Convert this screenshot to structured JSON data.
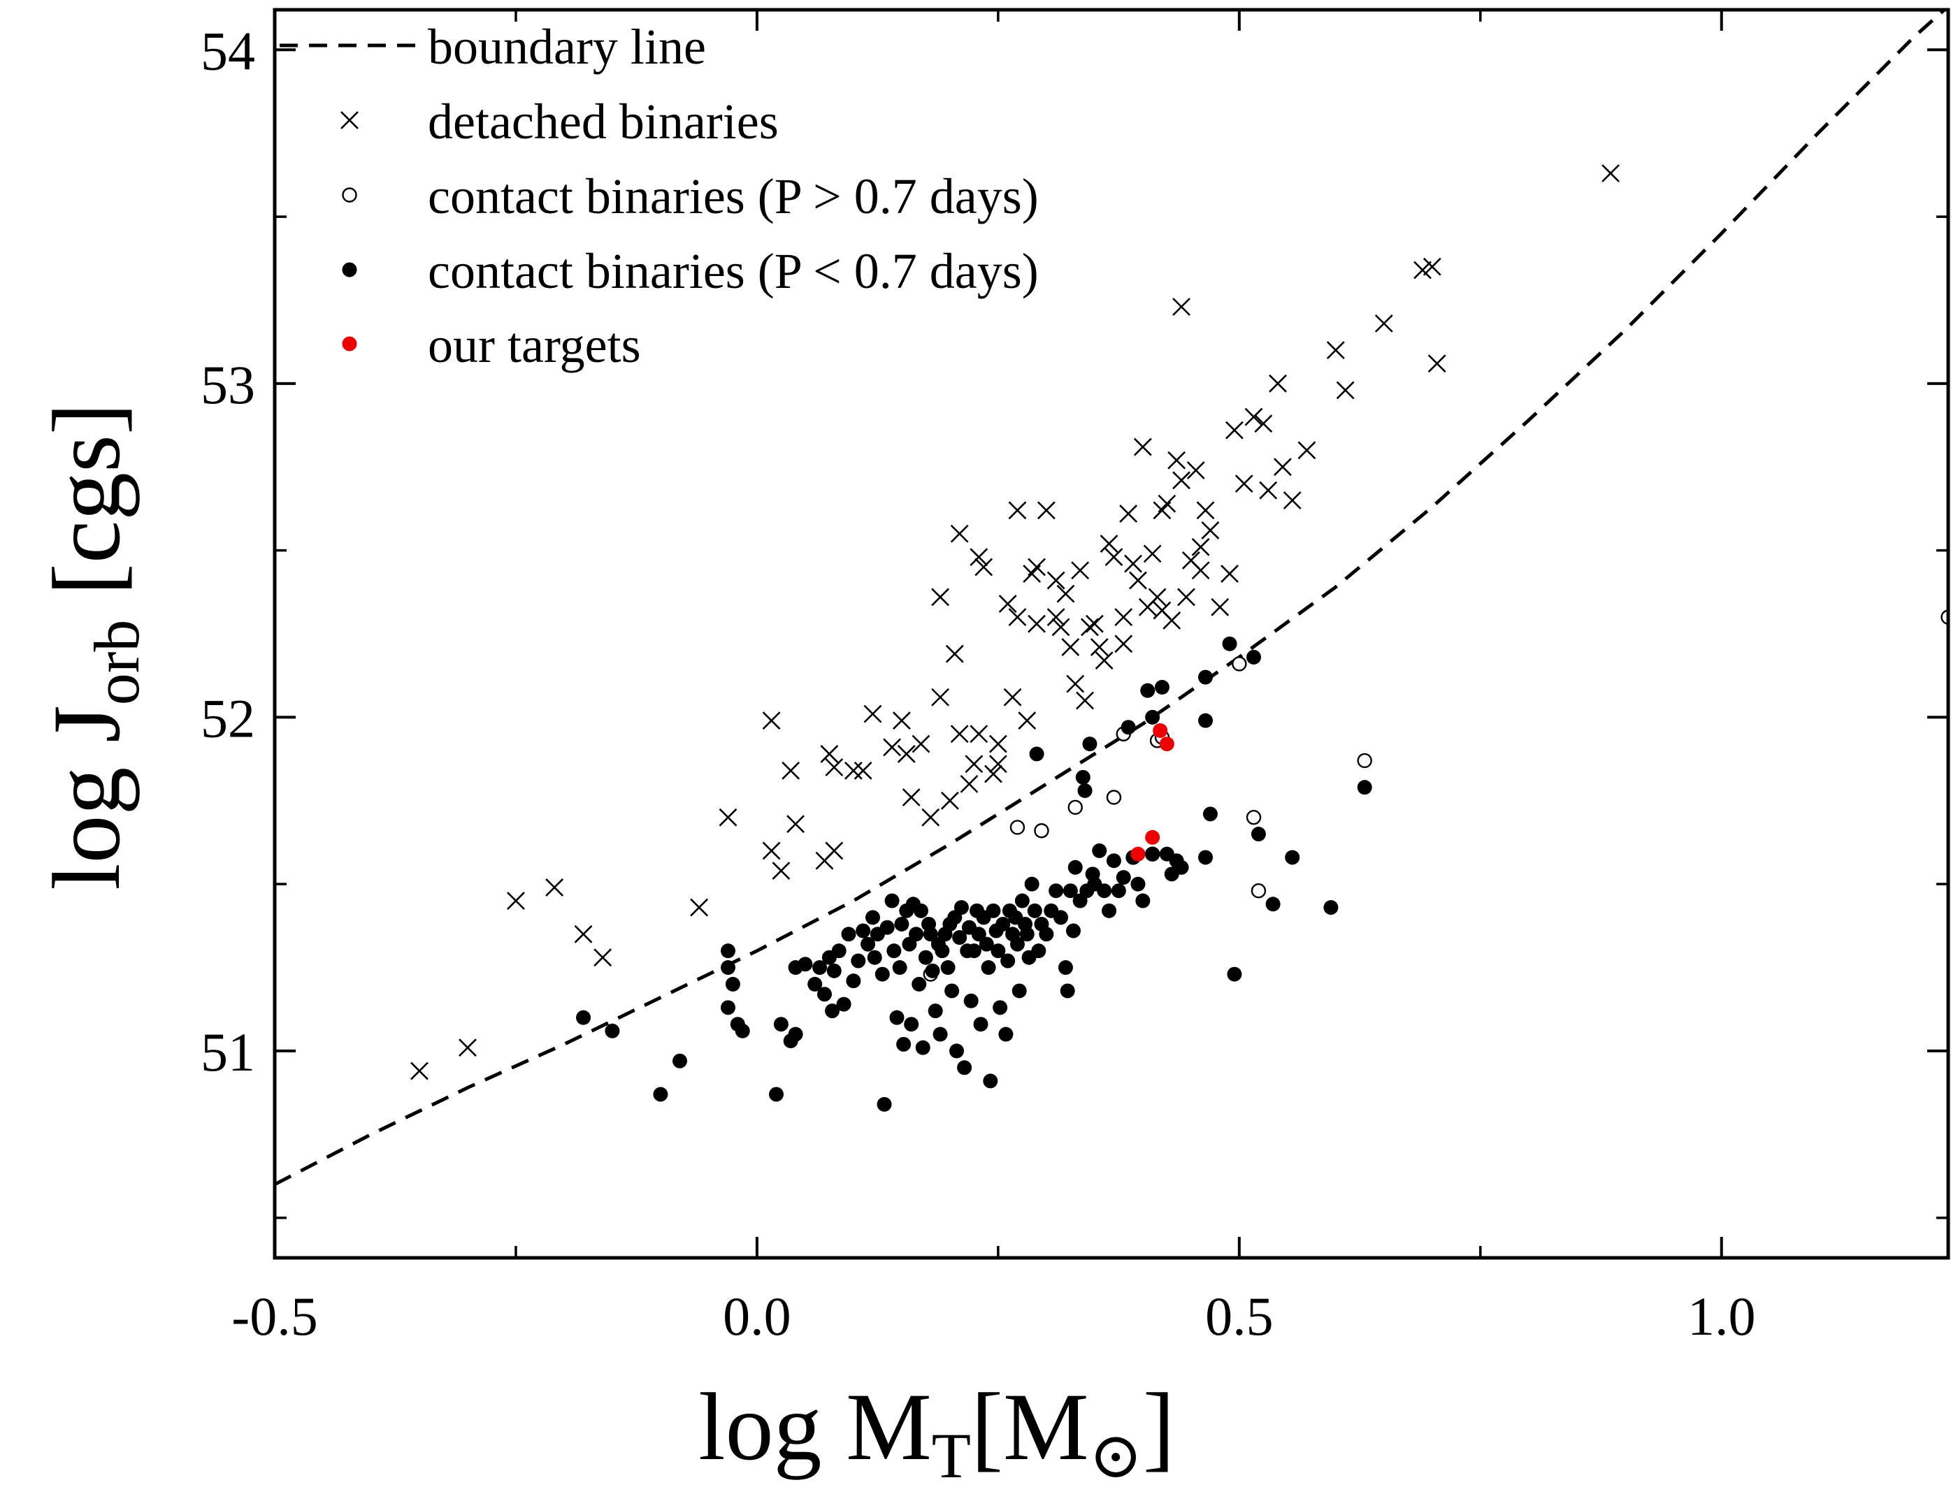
{
  "chart_data": {
    "type": "scatter",
    "xlabel": {
      "main": "log M",
      "sub": "T",
      "bracket_open": "[M",
      "sun_symbol": "⊙",
      "bracket_close": "]"
    },
    "ylabel": {
      "main": "log J",
      "sub": "orb",
      "unit": " [cgs]"
    },
    "xlim": [
      -0.5,
      1.235
    ],
    "ylim": [
      50.38,
      54.12
    ],
    "xticks": [
      -0.5,
      0.0,
      0.5,
      1.0
    ],
    "xtick_labels": [
      "-0.5",
      "0.0",
      "0.5",
      "1.0"
    ],
    "yticks": [
      51,
      52,
      53,
      54
    ],
    "ytick_labels": [
      "51",
      "52",
      "53",
      "54"
    ],
    "grid": false,
    "legend_position": "top-left",
    "legend": [
      {
        "key": "boundary",
        "label": "boundary line"
      },
      {
        "key": "detached",
        "label": "detached binaries"
      },
      {
        "key": "contact_long",
        "label": "contact binaries (P > 0.7 days)"
      },
      {
        "key": "contact_short",
        "label": "contact binaries (P < 0.7 days)"
      },
      {
        "key": "targets",
        "label": "our targets"
      }
    ],
    "boundary_line": {
      "style": "dashed",
      "x": [
        -0.5,
        -0.4,
        -0.3,
        -0.2,
        -0.1,
        0.0,
        0.1,
        0.2,
        0.3,
        0.4,
        0.5,
        0.6,
        0.7,
        0.8,
        0.9,
        1.0,
        1.1,
        1.2,
        1.235
      ],
      "y": [
        50.6,
        50.75,
        50.89,
        51.02,
        51.16,
        51.3,
        51.45,
        51.62,
        51.8,
        51.98,
        52.18,
        52.39,
        52.63,
        52.89,
        53.16,
        53.45,
        53.75,
        54.04,
        54.13
      ]
    },
    "series": [
      {
        "name": "detached binaries",
        "marker": "x",
        "color": "#000000",
        "points": [
          [
            -0.35,
            50.94
          ],
          [
            -0.3,
            51.01
          ],
          [
            -0.25,
            51.45
          ],
          [
            -0.21,
            51.49
          ],
          [
            -0.18,
            51.35
          ],
          [
            -0.16,
            51.28
          ],
          [
            -0.06,
            51.43
          ],
          [
            -0.03,
            51.7
          ],
          [
            0.015,
            51.99
          ],
          [
            0.015,
            51.6
          ],
          [
            0.025,
            51.54
          ],
          [
            0.035,
            51.84
          ],
          [
            0.04,
            51.68
          ],
          [
            0.07,
            51.57
          ],
          [
            0.075,
            51.89
          ],
          [
            0.08,
            51.85
          ],
          [
            0.08,
            51.6
          ],
          [
            0.1,
            51.84
          ],
          [
            0.11,
            51.84
          ],
          [
            0.12,
            52.01
          ],
          [
            0.14,
            51.91
          ],
          [
            0.15,
            51.99
          ],
          [
            0.155,
            51.89
          ],
          [
            0.16,
            51.76
          ],
          [
            0.17,
            51.92
          ],
          [
            0.18,
            51.7
          ],
          [
            0.19,
            52.06
          ],
          [
            0.19,
            52.36
          ],
          [
            0.2,
            51.75
          ],
          [
            0.205,
            52.19
          ],
          [
            0.21,
            52.55
          ],
          [
            0.21,
            51.95
          ],
          [
            0.22,
            51.8
          ],
          [
            0.225,
            51.86
          ],
          [
            0.23,
            52.48
          ],
          [
            0.23,
            51.95
          ],
          [
            0.235,
            52.45
          ],
          [
            0.245,
            51.83
          ],
          [
            0.25,
            51.86
          ],
          [
            0.25,
            51.92
          ],
          [
            0.26,
            52.34
          ],
          [
            0.265,
            52.06
          ],
          [
            0.27,
            52.62
          ],
          [
            0.27,
            52.3
          ],
          [
            0.28,
            51.99
          ],
          [
            0.285,
            52.43
          ],
          [
            0.29,
            52.28
          ],
          [
            0.29,
            52.45
          ],
          [
            0.3,
            52.62
          ],
          [
            0.31,
            52.41
          ],
          [
            0.31,
            52.3
          ],
          [
            0.315,
            52.27
          ],
          [
            0.32,
            52.37
          ],
          [
            0.325,
            52.21
          ],
          [
            0.33,
            52.1
          ],
          [
            0.335,
            52.44
          ],
          [
            0.34,
            52.05
          ],
          [
            0.345,
            52.27
          ],
          [
            0.35,
            52.28
          ],
          [
            0.355,
            52.21
          ],
          [
            0.36,
            52.17
          ],
          [
            0.365,
            52.52
          ],
          [
            0.37,
            52.48
          ],
          [
            0.38,
            52.22
          ],
          [
            0.38,
            52.3
          ],
          [
            0.385,
            52.61
          ],
          [
            0.39,
            52.46
          ],
          [
            0.395,
            52.41
          ],
          [
            0.4,
            52.81
          ],
          [
            0.405,
            52.33
          ],
          [
            0.41,
            52.49
          ],
          [
            0.415,
            52.36
          ],
          [
            0.42,
            52.32
          ],
          [
            0.42,
            52.62
          ],
          [
            0.425,
            52.64
          ],
          [
            0.43,
            52.29
          ],
          [
            0.435,
            52.77
          ],
          [
            0.44,
            52.71
          ],
          [
            0.445,
            52.36
          ],
          [
            0.45,
            52.47
          ],
          [
            0.455,
            52.74
          ],
          [
            0.46,
            52.44
          ],
          [
            0.46,
            52.51
          ],
          [
            0.465,
            52.62
          ],
          [
            0.47,
            52.56
          ],
          [
            0.48,
            52.33
          ],
          [
            0.49,
            52.43
          ],
          [
            0.495,
            52.86
          ],
          [
            0.505,
            52.7
          ],
          [
            0.515,
            52.9
          ],
          [
            0.525,
            52.88
          ],
          [
            0.53,
            52.68
          ],
          [
            0.54,
            53.0
          ],
          [
            0.545,
            52.75
          ],
          [
            0.555,
            52.65
          ],
          [
            0.57,
            52.8
          ],
          [
            0.6,
            53.1
          ],
          [
            0.61,
            52.98
          ],
          [
            0.65,
            53.18
          ],
          [
            0.69,
            53.34
          ],
          [
            0.7,
            53.35
          ],
          [
            0.705,
            53.06
          ],
          [
            0.885,
            53.63
          ],
          [
            0.44,
            53.23
          ]
        ]
      },
      {
        "name": "contact binaries (P > 0.7 days)",
        "marker": "open-circle",
        "color": "#000000",
        "points": [
          [
            0.18,
            51.23
          ],
          [
            0.27,
            51.67
          ],
          [
            0.295,
            51.66
          ],
          [
            0.33,
            51.73
          ],
          [
            0.37,
            51.76
          ],
          [
            0.38,
            51.95
          ],
          [
            0.39,
            51.58
          ],
          [
            0.415,
            51.93
          ],
          [
            0.5,
            52.16
          ],
          [
            0.515,
            51.7
          ],
          [
            0.52,
            51.48
          ],
          [
            0.63,
            51.87
          ],
          [
            1.235,
            52.3
          ],
          [
            0.42,
            51.94
          ],
          [
            0.41,
            51.59
          ]
        ]
      },
      {
        "name": "contact binaries (P < 0.7 days)",
        "marker": "filled-circle",
        "color": "#000000",
        "points": [
          [
            -0.1,
            50.87
          ],
          [
            -0.08,
            50.97
          ],
          [
            -0.18,
            51.1
          ],
          [
            -0.15,
            51.06
          ],
          [
            -0.03,
            51.25
          ],
          [
            -0.03,
            51.3
          ],
          [
            -0.03,
            51.13
          ],
          [
            -0.025,
            51.2
          ],
          [
            -0.02,
            51.08
          ],
          [
            -0.015,
            51.06
          ],
          [
            0.02,
            50.87
          ],
          [
            0.025,
            51.08
          ],
          [
            0.035,
            51.03
          ],
          [
            0.04,
            51.25
          ],
          [
            0.04,
            51.05
          ],
          [
            0.05,
            51.26
          ],
          [
            0.06,
            51.2
          ],
          [
            0.065,
            51.25
          ],
          [
            0.07,
            51.17
          ],
          [
            0.075,
            51.28
          ],
          [
            0.078,
            51.12
          ],
          [
            0.08,
            51.24
          ],
          [
            0.085,
            51.3
          ],
          [
            0.09,
            51.14
          ],
          [
            0.095,
            51.35
          ],
          [
            0.1,
            51.21
          ],
          [
            0.105,
            51.27
          ],
          [
            0.11,
            51.36
          ],
          [
            0.115,
            51.32
          ],
          [
            0.12,
            51.4
          ],
          [
            0.122,
            51.28
          ],
          [
            0.125,
            51.35
          ],
          [
            0.13,
            51.23
          ],
          [
            0.132,
            50.84
          ],
          [
            0.135,
            51.37
          ],
          [
            0.14,
            51.45
          ],
          [
            0.142,
            51.3
          ],
          [
            0.145,
            51.1
          ],
          [
            0.148,
            51.25
          ],
          [
            0.15,
            51.38
          ],
          [
            0.152,
            51.02
          ],
          [
            0.155,
            51.42
          ],
          [
            0.158,
            51.32
          ],
          [
            0.16,
            51.08
          ],
          [
            0.162,
            51.44
          ],
          [
            0.165,
            51.35
          ],
          [
            0.168,
            51.2
          ],
          [
            0.17,
            51.42
          ],
          [
            0.172,
            51.01
          ],
          [
            0.175,
            51.28
          ],
          [
            0.178,
            51.38
          ],
          [
            0.18,
            51.35
          ],
          [
            0.182,
            51.24
          ],
          [
            0.185,
            51.12
          ],
          [
            0.188,
            51.32
          ],
          [
            0.19,
            51.05
          ],
          [
            0.192,
            51.3
          ],
          [
            0.195,
            51.35
          ],
          [
            0.198,
            51.25
          ],
          [
            0.2,
            51.38
          ],
          [
            0.202,
            51.18
          ],
          [
            0.205,
            51.4
          ],
          [
            0.207,
            51.0
          ],
          [
            0.21,
            51.34
          ],
          [
            0.212,
            51.43
          ],
          [
            0.215,
            50.95
          ],
          [
            0.218,
            51.3
          ],
          [
            0.22,
            51.37
          ],
          [
            0.222,
            51.15
          ],
          [
            0.225,
            51.3
          ],
          [
            0.228,
            51.42
          ],
          [
            0.23,
            51.35
          ],
          [
            0.232,
            51.08
          ],
          [
            0.235,
            51.4
          ],
          [
            0.238,
            51.32
          ],
          [
            0.24,
            51.25
          ],
          [
            0.242,
            50.91
          ],
          [
            0.245,
            51.42
          ],
          [
            0.248,
            51.36
          ],
          [
            0.25,
            51.3
          ],
          [
            0.252,
            51.13
          ],
          [
            0.255,
            51.38
          ],
          [
            0.258,
            51.05
          ],
          [
            0.26,
            51.27
          ],
          [
            0.262,
            51.42
          ],
          [
            0.265,
            51.35
          ],
          [
            0.268,
            51.4
          ],
          [
            0.27,
            51.32
          ],
          [
            0.272,
            51.18
          ],
          [
            0.275,
            51.45
          ],
          [
            0.278,
            51.38
          ],
          [
            0.28,
            51.35
          ],
          [
            0.282,
            51.28
          ],
          [
            0.285,
            51.5
          ],
          [
            0.288,
            51.42
          ],
          [
            0.29,
            51.89
          ],
          [
            0.292,
            51.3
          ],
          [
            0.295,
            51.38
          ],
          [
            0.3,
            51.35
          ],
          [
            0.305,
            51.42
          ],
          [
            0.31,
            51.48
          ],
          [
            0.315,
            51.4
          ],
          [
            0.32,
            51.25
          ],
          [
            0.322,
            51.18
          ],
          [
            0.325,
            51.48
          ],
          [
            0.328,
            51.36
          ],
          [
            0.33,
            51.55
          ],
          [
            0.335,
            51.45
          ],
          [
            0.338,
            51.82
          ],
          [
            0.34,
            51.78
          ],
          [
            0.342,
            51.48
          ],
          [
            0.345,
            51.92
          ],
          [
            0.348,
            51.53
          ],
          [
            0.35,
            51.5
          ],
          [
            0.355,
            51.6
          ],
          [
            0.36,
            51.48
          ],
          [
            0.365,
            51.42
          ],
          [
            0.37,
            51.57
          ],
          [
            0.375,
            51.48
          ],
          [
            0.38,
            51.52
          ],
          [
            0.385,
            51.97
          ],
          [
            0.39,
            51.58
          ],
          [
            0.395,
            51.5
          ],
          [
            0.4,
            51.45
          ],
          [
            0.405,
            52.08
          ],
          [
            0.41,
            52.0
          ],
          [
            0.42,
            52.09
          ],
          [
            0.425,
            51.59
          ],
          [
            0.43,
            51.53
          ],
          [
            0.435,
            51.57
          ],
          [
            0.44,
            51.55
          ],
          [
            0.41,
            51.59
          ],
          [
            0.465,
            52.12
          ],
          [
            0.465,
            51.99
          ],
          [
            0.47,
            51.71
          ],
          [
            0.465,
            51.58
          ],
          [
            0.49,
            52.22
          ],
          [
            0.495,
            51.23
          ],
          [
            0.515,
            52.18
          ],
          [
            0.52,
            51.65
          ],
          [
            0.535,
            51.44
          ],
          [
            0.595,
            51.43
          ],
          [
            0.63,
            51.79
          ],
          [
            0.555,
            51.58
          ]
        ]
      },
      {
        "name": "our targets",
        "marker": "filled-circle",
        "color": "#ee0000",
        "points": [
          [
            0.418,
            51.96
          ],
          [
            0.425,
            51.92
          ],
          [
            0.41,
            51.64
          ],
          [
            0.395,
            51.59
          ]
        ]
      }
    ]
  }
}
